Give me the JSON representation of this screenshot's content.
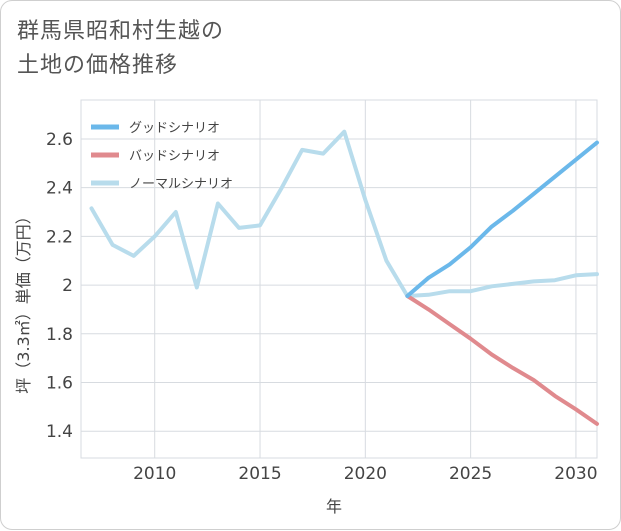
{
  "title_line1": "群馬県昭和村生越の",
  "title_line2": "土地の価格推移",
  "chart_data": {
    "type": "line",
    "xlabel": "年",
    "ylabel": "坪（3.3㎡）単価（万円）",
    "xlim": [
      2006.5,
      2031
    ],
    "ylim": [
      1.29,
      2.76
    ],
    "x_ticks": [
      2010,
      2015,
      2020,
      2025,
      2030
    ],
    "y_ticks": [
      1.4,
      1.6,
      1.8,
      2.0,
      2.2,
      2.4,
      2.6
    ],
    "y_tick_labels": [
      "1.4",
      "1.6",
      "1.8",
      "2",
      "2.2",
      "2.4",
      "2.6"
    ],
    "grid": true,
    "legend_position": "top-left",
    "series": [
      {
        "name": "グッドシナリオ",
        "color": "#6bb8ea",
        "x": [
          2022,
          2023,
          2024,
          2025,
          2026,
          2027,
          2028,
          2029,
          2030,
          2031
        ],
        "y": [
          1.955,
          2.03,
          2.085,
          2.155,
          2.24,
          2.305,
          2.375,
          2.445,
          2.515,
          2.585
        ]
      },
      {
        "name": "バッドシナリオ",
        "color": "#e08a8e",
        "x": [
          2022,
          2023,
          2024,
          2025,
          2026,
          2027,
          2028,
          2029,
          2030,
          2031
        ],
        "y": [
          1.955,
          1.9,
          1.84,
          1.78,
          1.715,
          1.66,
          1.61,
          1.545,
          1.49,
          1.43
        ]
      },
      {
        "name": "ノーマルシナリオ",
        "color": "#b8dcec",
        "x": [
          2007,
          2008,
          2009,
          2010,
          2011,
          2012,
          2013,
          2014,
          2015,
          2016,
          2017,
          2018,
          2019,
          2020,
          2021,
          2022,
          2023,
          2024,
          2025,
          2026,
          2027,
          2028,
          2029,
          2030,
          2031
        ],
        "y": [
          2.315,
          2.165,
          2.12,
          2.2,
          2.3,
          1.99,
          2.335,
          2.235,
          2.245,
          2.395,
          2.555,
          2.54,
          2.63,
          2.35,
          2.1,
          1.955,
          1.96,
          1.975,
          1.975,
          1.995,
          2.005,
          2.015,
          2.02,
          2.04,
          2.045
        ]
      }
    ]
  }
}
